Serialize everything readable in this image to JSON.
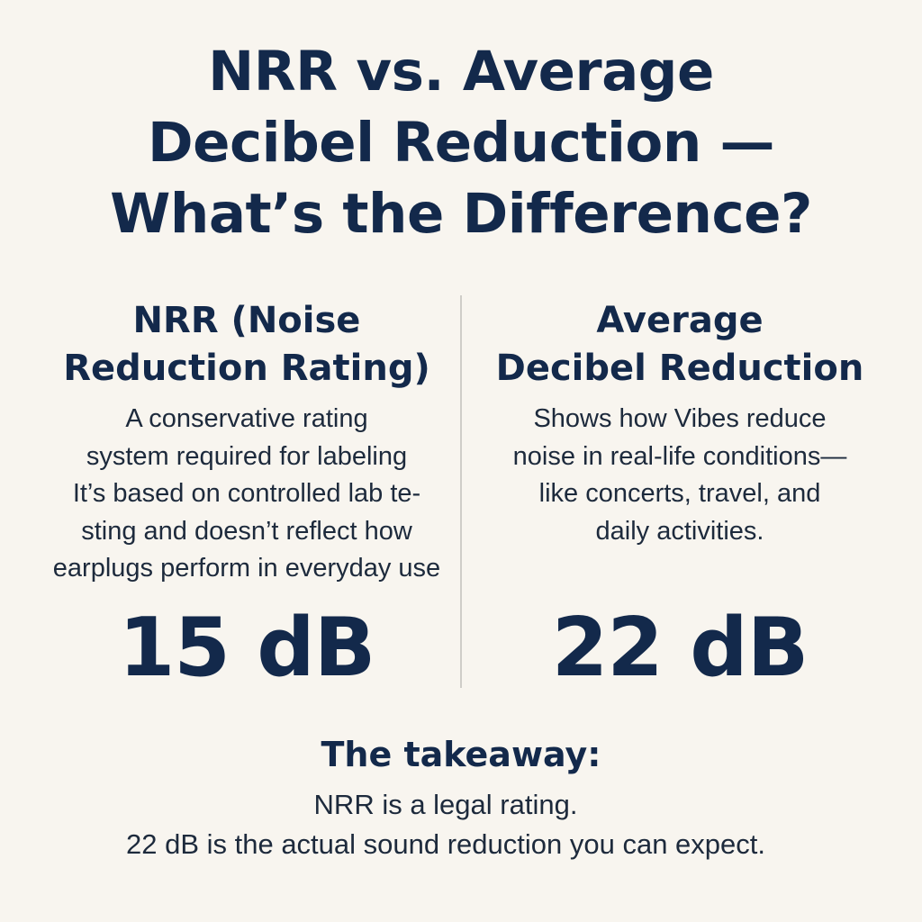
{
  "title": {
    "lines": [
      "NRR vs. Average",
      "Decibel Reduction —",
      "What’s the Difference?"
    ]
  },
  "left": {
    "heading_lines": [
      "NRR (Noise",
      "Reduction Rating)"
    ],
    "body_lines": [
      "A conservative rating",
      "system required for labeling",
      "It’s based on controlled lab te-",
      "sting and doesn’t reflect how",
      "earplugs perform in everyday use"
    ],
    "value": "15 dB"
  },
  "right": {
    "heading_lines": [
      "Average",
      "Decibel Reduction"
    ],
    "body_lines": [
      "Shows how Vibes reduce",
      "noise in real-life conditions—",
      "like concerts, travel, and",
      "daily activities."
    ],
    "value": "22 dB"
  },
  "takeaway": {
    "heading": "The takeaway:",
    "lines": [
      "NRR is a legal rating.",
      "22 dB is the actual sound reduction you can expect."
    ]
  },
  "colors": {
    "background": "#f8f5ef",
    "text": "#13294b",
    "divider": "#cfcdc8"
  }
}
